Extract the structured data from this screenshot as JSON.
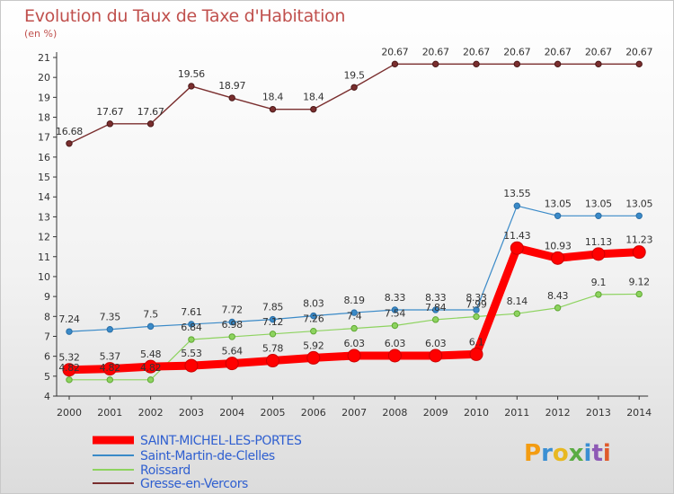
{
  "title": "Evolution du Taux de Taxe d'Habitation",
  "subtitle": "(en %)",
  "logo": "Proxiti",
  "chart_data": {
    "type": "line",
    "categories": [
      "2000",
      "2001",
      "2002",
      "2003",
      "2004",
      "2005",
      "2006",
      "2007",
      "2008",
      "2009",
      "2010",
      "2011",
      "2012",
      "2013",
      "2014"
    ],
    "ylim": [
      4,
      21
    ],
    "yticks": [
      4,
      5,
      6,
      7,
      8,
      9,
      10,
      11,
      12,
      13,
      14,
      15,
      16,
      17,
      18,
      19,
      20,
      21
    ],
    "grid": false,
    "legend_position": "bottom-left",
    "series": [
      {
        "name": "SAINT-MICHEL-LES-PORTES",
        "color": "#ff0000",
        "values": [
          5.32,
          5.37,
          5.48,
          5.53,
          5.64,
          5.78,
          5.92,
          6.03,
          6.03,
          6.03,
          6.1,
          11.43,
          10.93,
          11.13,
          11.23
        ],
        "labels": [
          "5.32",
          "5.37",
          "5.48",
          "5.53",
          "5.64",
          "5.78",
          "5.92",
          "6.03",
          "6.03",
          "6.03",
          "6.1",
          "11.43",
          "10.93",
          "11.13",
          "11.23"
        ]
      },
      {
        "name": "Saint-Martin-de-Clelles",
        "color": "#3a8ac8",
        "values": [
          7.24,
          7.35,
          7.5,
          7.61,
          7.72,
          7.85,
          8.03,
          8.19,
          8.33,
          8.33,
          8.33,
          13.55,
          13.05,
          13.05,
          13.05
        ],
        "labels": [
          "7.24",
          "7.35",
          "7.5",
          "7.61",
          "7.72",
          "7.85",
          "8.03",
          "8.19",
          "8.33",
          "8.33",
          "8.33",
          "13.55",
          "13.05",
          "13.05",
          "13.05"
        ]
      },
      {
        "name": "Roissard",
        "color": "#8dd35f",
        "values": [
          4.82,
          4.82,
          4.82,
          6.84,
          6.98,
          7.12,
          7.26,
          7.4,
          7.54,
          7.84,
          7.99,
          8.14,
          8.43,
          9.1,
          9.12
        ],
        "labels": [
          "4.82",
          "4.82",
          "4.82",
          "6.84",
          "6.98",
          "7.12",
          "7.26",
          "7.4",
          "7.54",
          "7.84",
          "7.99",
          "8.14",
          "8.43",
          "9.1",
          "9.12"
        ]
      },
      {
        "name": "Gresse-en-Vercors",
        "color": "#7a2e2e",
        "values": [
          16.68,
          17.67,
          17.67,
          19.56,
          18.97,
          18.4,
          18.4,
          19.5,
          20.67,
          20.67,
          20.67,
          20.67,
          20.67,
          20.67,
          20.67
        ],
        "labels": [
          "16.68",
          "17.67",
          "17.67",
          "19.56",
          "18.97",
          "18.4",
          "18.4",
          "19.5",
          "20.67",
          "20.67",
          "20.67",
          "20.67",
          "20.67",
          "20.67",
          "20.67"
        ]
      }
    ]
  }
}
